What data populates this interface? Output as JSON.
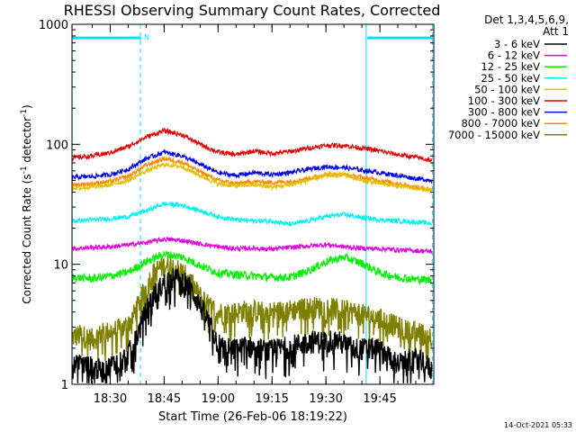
{
  "chart_data": {
    "type": "line",
    "title": "RHESSI Observing Summary Count Rates, Corrected",
    "xlabel": "Start Time (26-Feb-06 18:19:22)",
    "ylabel": "Corrected Count Rate (s",
    "ylabel_sup1": "-1",
    "ylabel_mid": " detector",
    "ylabel_sup2": "-1",
    "ylabel_end": ")",
    "y_scale": "log",
    "ylim": [
      1,
      1000
    ],
    "y_ticks": [
      {
        "value": 1,
        "label": "1"
      },
      {
        "value": 10,
        "label": "10"
      },
      {
        "value": 100,
        "label": "100"
      },
      {
        "value": 1000,
        "label": "1000"
      }
    ],
    "x_range_minutes": [
      "18:19:22",
      "20:00:00"
    ],
    "x_ticks": [
      "18:30",
      "18:45",
      "19:00",
      "19:15",
      "19:30",
      "19:45"
    ],
    "x_tick_minutes": [
      30,
      45,
      60,
      75,
      90,
      105
    ],
    "x_min_minutes": 19.37,
    "x_max_minutes": 120,
    "grid": false,
    "legend_position": "right",
    "legend_header": [
      "Det 1,3,4,5,6,9,",
      "Att 1"
    ],
    "timestamp": "14-Oct-2021 05:33",
    "flag_marker": "N",
    "attenuator_bars": [
      {
        "x_start": 19.37,
        "x_end": 38.4,
        "y": 770
      },
      {
        "x_start": 101.5,
        "x_end": 119.6,
        "y": 770
      }
    ],
    "vertical_markers": [
      {
        "x": 19.4,
        "style": "solid"
      },
      {
        "x": 38.4,
        "style": "dashed"
      },
      {
        "x": 101.2,
        "style": "solid"
      },
      {
        "x": 119.6,
        "style": "dashed"
      }
    ],
    "series": [
      {
        "name": "3 - 6 keV",
        "color": "#000000",
        "x": [
          19.4,
          22,
          25,
          28,
          31,
          34,
          36,
          38,
          40,
          42,
          44,
          46,
          48,
          50,
          52,
          54,
          56,
          58,
          60,
          62,
          65,
          68,
          71,
          74,
          77,
          80,
          83,
          86,
          89,
          92,
          95,
          98,
          101,
          104,
          107,
          110,
          113,
          116,
          119.6
        ],
        "y": [
          1.4,
          1.5,
          1.4,
          1.3,
          1.5,
          1.7,
          2.0,
          2.8,
          4.2,
          5.5,
          6.5,
          7.5,
          7.8,
          7.5,
          6.5,
          5.2,
          4.0,
          3.0,
          2.2,
          2.0,
          2.0,
          2.1,
          2.0,
          1.9,
          2.0,
          2.1,
          2.2,
          2.3,
          2.3,
          2.4,
          2.2,
          2.0,
          2.0,
          2.0,
          1.8,
          1.5,
          1.6,
          1.7,
          1.3
        ]
      },
      {
        "name": "6 - 12 keV",
        "color": "#e000e0",
        "x": [
          19.4,
          25,
          30,
          35,
          40,
          45,
          50,
          55,
          60,
          65,
          70,
          75,
          80,
          85,
          90,
          95,
          100,
          105,
          110,
          115,
          119.6
        ],
        "y": [
          13.5,
          13.8,
          14.0,
          14.5,
          15.2,
          16.2,
          15.8,
          14.8,
          14.0,
          13.5,
          13.6,
          13.4,
          13.8,
          14.2,
          14.6,
          14.0,
          13.6,
          13.5,
          13.2,
          13.0,
          12.8
        ]
      },
      {
        "name": "12 - 25 keV",
        "color": "#00ee00",
        "x": [
          19.4,
          25,
          30,
          35,
          40,
          45,
          50,
          55,
          60,
          65,
          70,
          75,
          80,
          85,
          90,
          95,
          100,
          105,
          110,
          115,
          119.6
        ],
        "y": [
          7.8,
          7.6,
          8.0,
          8.6,
          10.5,
          12.2,
          11.5,
          9.8,
          8.5,
          8.2,
          8.0,
          7.8,
          7.8,
          8.8,
          10.5,
          11.5,
          10.2,
          8.5,
          7.8,
          7.5,
          7.4
        ]
      },
      {
        "name": "25 - 50 keV",
        "color": "#00f0f0",
        "x": [
          19.4,
          25,
          30,
          35,
          40,
          45,
          50,
          55,
          60,
          65,
          70,
          75,
          80,
          85,
          90,
          95,
          100,
          105,
          110,
          115,
          119.6
        ],
        "y": [
          23,
          23.5,
          24,
          25,
          28,
          32,
          31,
          28,
          25,
          23.5,
          23,
          23,
          21.5,
          23,
          25,
          26,
          24.5,
          23.5,
          23,
          22.5,
          22
        ]
      },
      {
        "name": "50 - 100 keV",
        "color": "#e0c000",
        "x": [
          19.4,
          25,
          30,
          35,
          40,
          45,
          50,
          55,
          60,
          65,
          70,
          75,
          80,
          85,
          90,
          95,
          100,
          105,
          110,
          115,
          119.6
        ],
        "y": [
          43,
          44,
          46,
          50,
          60,
          68,
          65,
          55,
          47,
          45,
          46,
          44,
          46,
          50,
          55,
          56,
          50,
          47,
          45,
          43,
          41
        ]
      },
      {
        "name": "100 - 300 keV",
        "color": "#e00000",
        "x": [
          19.4,
          25,
          30,
          35,
          40,
          45,
          50,
          55,
          60,
          65,
          70,
          75,
          80,
          85,
          90,
          95,
          100,
          105,
          110,
          115,
          119.6
        ],
        "y": [
          77,
          80,
          85,
          96,
          115,
          130,
          120,
          100,
          86,
          82,
          88,
          84,
          87,
          93,
          98,
          98,
          93,
          88,
          82,
          78,
          73
        ]
      },
      {
        "name": "300 - 800 keV",
        "color": "#0000e0",
        "x": [
          19.4,
          25,
          30,
          35,
          40,
          45,
          50,
          55,
          60,
          65,
          70,
          75,
          80,
          85,
          90,
          95,
          100,
          105,
          110,
          115,
          119.6
        ],
        "y": [
          53,
          54,
          56,
          62,
          76,
          86,
          80,
          68,
          58,
          55,
          58,
          56,
          58,
          62,
          65,
          64,
          61,
          58,
          55,
          52,
          50
        ]
      },
      {
        "name": "800 - 7000 keV",
        "color": "#ff8800",
        "x": [
          19.4,
          25,
          30,
          35,
          40,
          45,
          50,
          55,
          60,
          65,
          70,
          75,
          80,
          85,
          90,
          95,
          100,
          105,
          110,
          115,
          119.6
        ],
        "y": [
          46,
          47,
          49,
          54,
          67,
          76,
          71,
          59,
          50,
          47,
          49,
          48,
          49,
          52,
          56,
          56,
          53,
          50,
          47,
          44,
          42
        ]
      },
      {
        "name": "7000 - 15000 keV",
        "color": "#808000",
        "x": [
          19.4,
          22,
          25,
          28,
          31,
          34,
          36,
          38,
          40,
          42,
          44,
          46,
          48,
          50,
          52,
          54,
          56,
          58,
          60,
          62,
          65,
          68,
          71,
          74,
          77,
          80,
          83,
          86,
          89,
          92,
          95,
          98,
          101,
          104,
          107,
          110,
          113,
          116,
          119.6
        ],
        "y": [
          2.5,
          2.6,
          2.4,
          2.7,
          2.8,
          3.0,
          3.5,
          4.8,
          6.5,
          8.5,
          9.5,
          10.0,
          9.6,
          8.6,
          7.5,
          6.0,
          5.0,
          4.4,
          4.0,
          4.0,
          4.0,
          4.2,
          4.1,
          4.0,
          4.1,
          4.2,
          4.3,
          4.4,
          4.4,
          4.3,
          4.2,
          4.0,
          3.8,
          3.6,
          3.4,
          3.0,
          2.8,
          2.7,
          2.5
        ]
      }
    ]
  }
}
